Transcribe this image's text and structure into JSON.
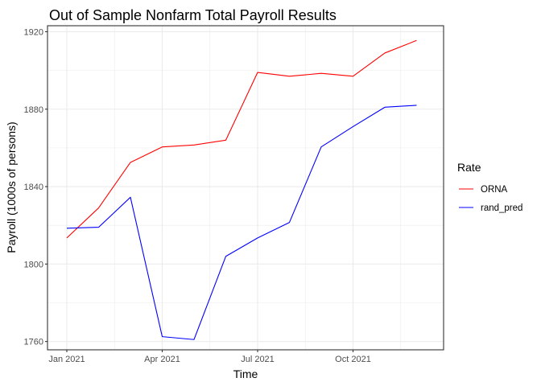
{
  "chart_data": {
    "type": "line",
    "title": "Out of Sample Nonfarm Total Payroll Results",
    "xlabel": "Time",
    "ylabel": "Payroll (1000s of persons)",
    "x": [
      "2021-01",
      "2021-02",
      "2021-03",
      "2021-04",
      "2021-05",
      "2021-06",
      "2021-07",
      "2021-08",
      "2021-09",
      "2021-10",
      "2021-11",
      "2021-12"
    ],
    "xticks": [
      "Jan 2021",
      "Apr 2021",
      "Jul 2021",
      "Oct 2021"
    ],
    "yticks": [
      1760,
      1800,
      1840,
      1880,
      1920
    ],
    "ylim": [
      1755.7,
      1923.1
    ],
    "grid": true,
    "legend": {
      "title": "Rate",
      "position": "right"
    },
    "series": [
      {
        "name": "ORNA",
        "color": "#ff0000",
        "values": [
          1813.5,
          1829,
          1852.5,
          1860.5,
          1861.5,
          1864,
          1899,
          1897,
          1898.5,
          1897,
          1909,
          1915.5
        ]
      },
      {
        "name": "rand_pred",
        "color": "#0000ff",
        "values": [
          1818.5,
          1819,
          1834.5,
          1762.5,
          1761,
          1804,
          1813.5,
          1821.5,
          1860.5,
          1871,
          1881,
          1882
        ]
      }
    ]
  }
}
